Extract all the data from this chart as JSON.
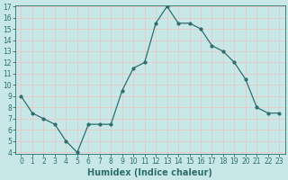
{
  "x": [
    0,
    1,
    2,
    3,
    4,
    5,
    6,
    7,
    8,
    9,
    10,
    11,
    12,
    13,
    14,
    15,
    16,
    17,
    18,
    19,
    20,
    21,
    22,
    23
  ],
  "y": [
    9.0,
    7.5,
    7.0,
    6.5,
    5.0,
    4.0,
    6.5,
    6.5,
    6.5,
    9.5,
    11.5,
    12.0,
    15.5,
    17.0,
    15.5,
    15.5,
    15.0,
    13.5,
    13.0,
    12.0,
    10.5,
    8.0,
    7.5,
    7.5
  ],
  "xlabel": "Humidex (Indice chaleur)",
  "ylim": [
    4,
    17
  ],
  "xlim": [
    -0.5,
    23.5
  ],
  "yticks": [
    4,
    5,
    6,
    7,
    8,
    9,
    10,
    11,
    12,
    13,
    14,
    15,
    16,
    17
  ],
  "xticks": [
    0,
    1,
    2,
    3,
    4,
    5,
    6,
    7,
    8,
    9,
    10,
    11,
    12,
    13,
    14,
    15,
    16,
    17,
    18,
    19,
    20,
    21,
    22,
    23
  ],
  "line_color": "#2d6e6e",
  "marker_color": "#2d6e6e",
  "bg_color": "#c8e8e8",
  "grid_color": "#e8c8c8",
  "axis_color": "#2d6e6e",
  "tick_label_color": "#2d6e6e",
  "xlabel_color": "#2d6e6e",
  "xlabel_fontsize": 7,
  "tick_fontsize": 5.5
}
